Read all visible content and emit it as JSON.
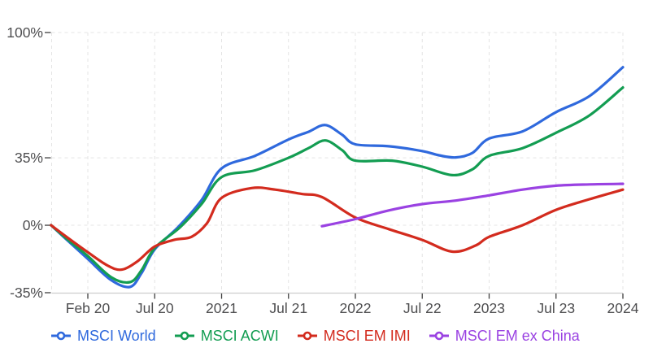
{
  "chart_data": {
    "type": "line",
    "title": "",
    "xlabel": "",
    "ylabel": "",
    "x_tick_labels": [
      "Feb 20",
      "Jul 20",
      "2021",
      "Jul 21",
      "2022",
      "Jul 22",
      "2023",
      "Jul 23",
      "2024"
    ],
    "x_unit_note": "x values in tick-index units: 0 = Feb 20 tick, 1 = Jul 20, ... 8 = 2024; data begins at -0.55 (late 2019)",
    "y_ticks": [
      {
        "label": "100%",
        "value": 100
      },
      {
        "label": "35%",
        "value": 35
      },
      {
        "label": "0%",
        "value": 0
      },
      {
        "label": "-35%",
        "value": -35
      }
    ],
    "ylim": [
      -35,
      100
    ],
    "xlim": [
      -0.55,
      8
    ],
    "grid": "dashed",
    "legend_position": "bottom",
    "series": [
      {
        "name": "MSCI World",
        "color": "#2F69DD",
        "points": [
          [
            -0.55,
            0
          ],
          [
            -0.3,
            -8
          ],
          [
            0,
            -17.5
          ],
          [
            0.35,
            -28.5
          ],
          [
            0.63,
            -32
          ],
          [
            0.8,
            -25
          ],
          [
            1,
            -12.5
          ],
          [
            1.35,
            -1
          ],
          [
            1.7,
            13
          ],
          [
            2,
            29.5
          ],
          [
            2.5,
            36
          ],
          [
            3,
            44.5
          ],
          [
            3.3,
            48.5
          ],
          [
            3.55,
            52
          ],
          [
            3.8,
            47
          ],
          [
            4,
            42
          ],
          [
            4.5,
            41
          ],
          [
            5,
            38.5
          ],
          [
            5.25,
            36.3
          ],
          [
            5.5,
            35.2
          ],
          [
            5.75,
            37.5
          ],
          [
            6,
            45
          ],
          [
            6.5,
            48.7
          ],
          [
            7,
            58.7
          ],
          [
            7.5,
            67
          ],
          [
            8,
            82
          ]
        ]
      },
      {
        "name": "MSCI ACWI",
        "color": "#139D52",
        "points": [
          [
            -0.55,
            0
          ],
          [
            -0.3,
            -7.5
          ],
          [
            0,
            -16
          ],
          [
            0.35,
            -27
          ],
          [
            0.63,
            -29.5
          ],
          [
            0.8,
            -23.5
          ],
          [
            1,
            -11.8
          ],
          [
            1.38,
            -1
          ],
          [
            1.7,
            11
          ],
          [
            2,
            25
          ],
          [
            2.5,
            28.5
          ],
          [
            3,
            35
          ],
          [
            3.3,
            40
          ],
          [
            3.55,
            44
          ],
          [
            3.8,
            39
          ],
          [
            4,
            33.5
          ],
          [
            4.55,
            33.5
          ],
          [
            5,
            30.4
          ],
          [
            5.45,
            26
          ],
          [
            5.75,
            29
          ],
          [
            6,
            36
          ],
          [
            6.5,
            40
          ],
          [
            7,
            48
          ],
          [
            7.5,
            57
          ],
          [
            8,
            71.5
          ]
        ]
      },
      {
        "name": "MSCI EM IMI",
        "color": "#D32B1E",
        "points": [
          [
            -0.55,
            0
          ],
          [
            -0.3,
            -6.5
          ],
          [
            0,
            -14
          ],
          [
            0.3,
            -21
          ],
          [
            0.51,
            -23
          ],
          [
            0.75,
            -18.5
          ],
          [
            1,
            -11
          ],
          [
            1.3,
            -7.5
          ],
          [
            1.55,
            -6
          ],
          [
            1.78,
            1
          ],
          [
            2,
            14.2
          ],
          [
            2.45,
            19.3
          ],
          [
            2.8,
            18.5
          ],
          [
            3.2,
            16.2
          ],
          [
            3.5,
            14.6
          ],
          [
            4,
            4
          ],
          [
            4.5,
            -2
          ],
          [
            5,
            -7.6
          ],
          [
            5.45,
            -13.7
          ],
          [
            5.8,
            -10.5
          ],
          [
            6,
            -6
          ],
          [
            6.5,
            0
          ],
          [
            7,
            8
          ],
          [
            7.5,
            13.5
          ],
          [
            8,
            18.5
          ]
        ]
      },
      {
        "name": "MSCI EM ex China",
        "color": "#9A42E2",
        "points": [
          [
            3.5,
            -0.5
          ],
          [
            4,
            3.2
          ],
          [
            4.5,
            7.7
          ],
          [
            5,
            11
          ],
          [
            5.5,
            12.8
          ],
          [
            6,
            15.5
          ],
          [
            6.5,
            18.5
          ],
          [
            7,
            20.5
          ],
          [
            7.5,
            21.2
          ],
          [
            8,
            21.5
          ]
        ]
      }
    ]
  },
  "colors": {
    "background": "#FFFFFF",
    "gridline": "#E4E4E4",
    "axis_line": "#CDCDCD",
    "tick_mark": "#3F3F3F",
    "tick_label": "#4E4E50",
    "marker_fill": "#FFFFFF"
  }
}
